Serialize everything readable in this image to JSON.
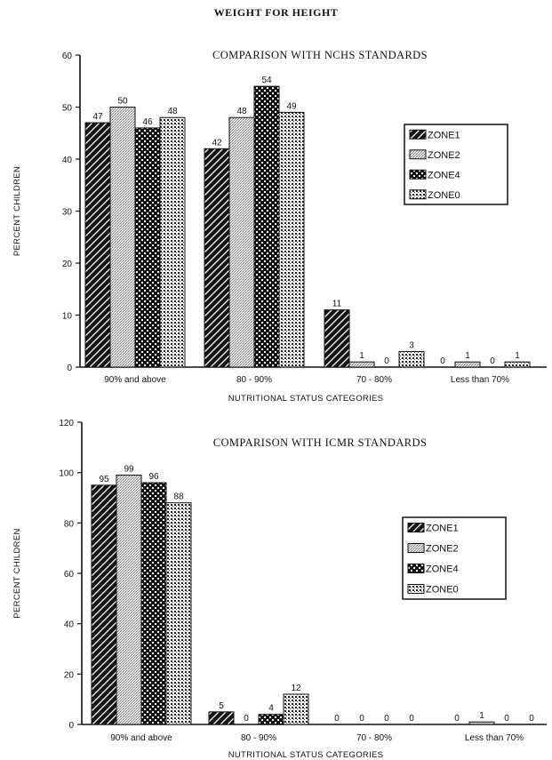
{
  "page": {
    "title": "WEIGHT FOR HEIGHT"
  },
  "colors": {
    "ink": "#111111",
    "paper": "#ffffff"
  },
  "chart_data": [
    {
      "type": "bar",
      "title": "COMPARISON WITH NCHS STANDARDS",
      "xlabel": "NUTRITIONAL STATUS CATEGORIES",
      "ylabel": "PERCENT CHILDREN",
      "categories": [
        "90% and above",
        "80 - 90%",
        "70 - 80%",
        "Less than 70%"
      ],
      "ylim": [
        0,
        60
      ],
      "yticks": [
        0,
        10,
        20,
        30,
        40,
        50,
        60
      ],
      "grid": false,
      "legend_position": "right",
      "series": [
        {
          "name": "ZONE1",
          "pattern": "diagonal-dark",
          "values": [
            47,
            42,
            11,
            0
          ]
        },
        {
          "name": "ZONE2",
          "pattern": "fine-stipple",
          "values": [
            50,
            48,
            1,
            1
          ]
        },
        {
          "name": "ZONE4",
          "pattern": "checker-dark",
          "values": [
            46,
            54,
            0,
            0
          ]
        },
        {
          "name": "ZONE0",
          "pattern": "grid-dots",
          "values": [
            48,
            49,
            3,
            1
          ]
        }
      ]
    },
    {
      "type": "bar",
      "title": "COMPARISON WITH ICMR STANDARDS",
      "xlabel": "NUTRITIONAL STATUS CATEGORIES",
      "ylabel": "PERCENT CHILDREN",
      "categories": [
        "90% and above",
        "80 - 90%",
        "70 - 80%",
        "Less than 70%"
      ],
      "ylim": [
        0,
        120
      ],
      "yticks": [
        0,
        20,
        40,
        60,
        80,
        100,
        120
      ],
      "grid": false,
      "legend_position": "right",
      "series": [
        {
          "name": "ZONE1",
          "pattern": "diagonal-dark",
          "values": [
            95,
            5,
            0,
            0
          ]
        },
        {
          "name": "ZONE2",
          "pattern": "fine-stipple",
          "values": [
            99,
            0,
            0,
            1
          ]
        },
        {
          "name": "ZONE4",
          "pattern": "checker-dark",
          "values": [
            96,
            4,
            0,
            0
          ]
        },
        {
          "name": "ZONE0",
          "pattern": "grid-dots",
          "values": [
            88,
            12,
            0,
            0
          ]
        }
      ]
    }
  ]
}
